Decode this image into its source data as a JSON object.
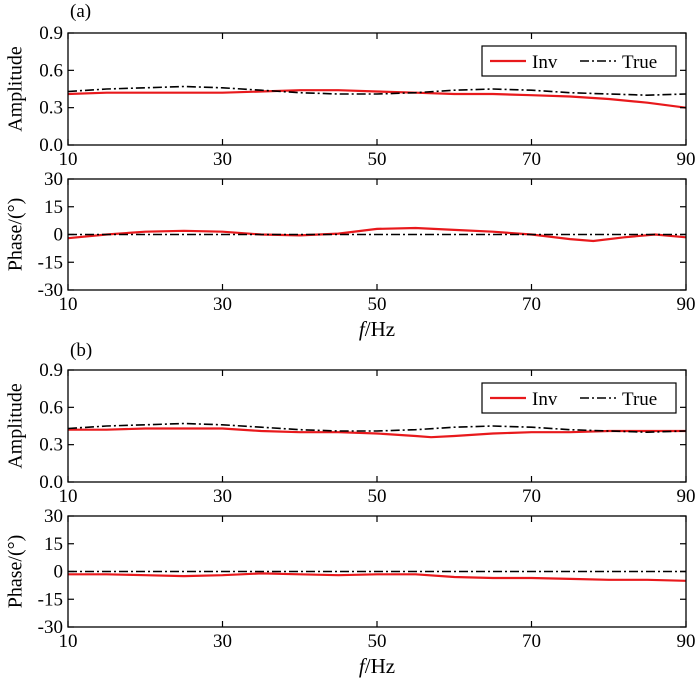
{
  "figure": {
    "xlabel_italic": "f",
    "xlabel_unit": "/Hz"
  },
  "legend": {
    "inv": "Inv",
    "true": "True"
  },
  "colors": {
    "inv": "#e8191c",
    "true": "#000000"
  },
  "chart_data": [
    {
      "type": "line",
      "panel": "(a)",
      "subplot": "amplitude",
      "title": "",
      "xlabel": "",
      "ylabel": "Amplitude",
      "xlim": [
        10,
        90
      ],
      "ylim": [
        0,
        0.9
      ],
      "xticks": [
        10,
        30,
        50,
        70,
        90
      ],
      "yticks": [
        0.0,
        0.3,
        0.6,
        0.9
      ],
      "ytick_labels": [
        "0.0",
        "0.3",
        "0.6",
        "0.9"
      ],
      "legend": "top-right",
      "series": [
        {
          "name": "Inv",
          "x": [
            10,
            15,
            20,
            25,
            30,
            35,
            40,
            45,
            50,
            55,
            60,
            65,
            70,
            75,
            80,
            85,
            90
          ],
          "y": [
            0.41,
            0.42,
            0.42,
            0.42,
            0.42,
            0.43,
            0.44,
            0.44,
            0.43,
            0.42,
            0.41,
            0.41,
            0.4,
            0.39,
            0.37,
            0.34,
            0.3
          ]
        },
        {
          "name": "True",
          "x": [
            10,
            15,
            20,
            25,
            30,
            35,
            40,
            45,
            50,
            55,
            60,
            65,
            70,
            75,
            80,
            85,
            90
          ],
          "y": [
            0.43,
            0.45,
            0.46,
            0.47,
            0.46,
            0.44,
            0.42,
            0.41,
            0.41,
            0.42,
            0.44,
            0.45,
            0.44,
            0.42,
            0.41,
            0.4,
            0.41
          ]
        }
      ]
    },
    {
      "type": "line",
      "panel": "(a)",
      "subplot": "phase",
      "title": "",
      "xlabel": "f/Hz",
      "ylabel": "Phase/(°)",
      "xlim": [
        10,
        90
      ],
      "ylim": [
        -30,
        30
      ],
      "xticks": [
        10,
        30,
        50,
        70,
        90
      ],
      "yticks": [
        -30,
        -15,
        0,
        15,
        30
      ],
      "ytick_labels": [
        "-30",
        "-15",
        "0",
        "15",
        "30"
      ],
      "series": [
        {
          "name": "Inv",
          "x": [
            10,
            15,
            20,
            25,
            30,
            35,
            40,
            45,
            50,
            55,
            60,
            65,
            70,
            75,
            78,
            82,
            86,
            90
          ],
          "y": [
            -2,
            0,
            1.5,
            2,
            1.5,
            0,
            -0.5,
            0.5,
            3,
            3.5,
            2.5,
            1.5,
            0,
            -2.5,
            -3.5,
            -1.5,
            0,
            -1.5
          ]
        },
        {
          "name": "True",
          "x": [
            10,
            90
          ],
          "y": [
            0,
            0
          ]
        }
      ]
    },
    {
      "type": "line",
      "panel": "(b)",
      "subplot": "amplitude",
      "title": "",
      "xlabel": "",
      "ylabel": "Amplitude",
      "xlim": [
        10,
        90
      ],
      "ylim": [
        0,
        0.9
      ],
      "xticks": [
        10,
        30,
        50,
        70,
        90
      ],
      "yticks": [
        0.0,
        0.3,
        0.6,
        0.9
      ],
      "ytick_labels": [
        "0.0",
        "0.3",
        "0.6",
        "0.9"
      ],
      "legend": "top-right",
      "series": [
        {
          "name": "Inv",
          "x": [
            10,
            15,
            20,
            25,
            30,
            35,
            40,
            45,
            50,
            55,
            57,
            60,
            65,
            70,
            75,
            80,
            85,
            90
          ],
          "y": [
            0.42,
            0.42,
            0.43,
            0.43,
            0.43,
            0.41,
            0.4,
            0.4,
            0.39,
            0.37,
            0.36,
            0.37,
            0.39,
            0.4,
            0.4,
            0.41,
            0.41,
            0.41
          ]
        },
        {
          "name": "True",
          "x": [
            10,
            15,
            20,
            25,
            30,
            35,
            40,
            45,
            50,
            55,
            60,
            65,
            70,
            75,
            80,
            85,
            90
          ],
          "y": [
            0.43,
            0.45,
            0.46,
            0.47,
            0.46,
            0.44,
            0.42,
            0.41,
            0.41,
            0.42,
            0.44,
            0.45,
            0.44,
            0.42,
            0.41,
            0.4,
            0.41
          ]
        }
      ]
    },
    {
      "type": "line",
      "panel": "(b)",
      "subplot": "phase",
      "title": "",
      "xlabel": "f/Hz",
      "ylabel": "Phase/(°)",
      "xlim": [
        10,
        90
      ],
      "ylim": [
        -30,
        30
      ],
      "xticks": [
        10,
        30,
        50,
        70,
        90
      ],
      "yticks": [
        -30,
        -15,
        0,
        15,
        30
      ],
      "ytick_labels": [
        "-30",
        "-15",
        "0",
        "15",
        "30"
      ],
      "series": [
        {
          "name": "Inv",
          "x": [
            10,
            15,
            20,
            25,
            30,
            35,
            40,
            45,
            50,
            55,
            60,
            65,
            70,
            75,
            80,
            85,
            90
          ],
          "y": [
            -1.5,
            -1.5,
            -2,
            -2.5,
            -2,
            -1,
            -1.5,
            -2,
            -1.5,
            -1.5,
            -3,
            -3.5,
            -3.5,
            -4,
            -4.5,
            -4.5,
            -5
          ]
        },
        {
          "name": "True",
          "x": [
            10,
            90
          ],
          "y": [
            0,
            0
          ]
        }
      ]
    }
  ]
}
